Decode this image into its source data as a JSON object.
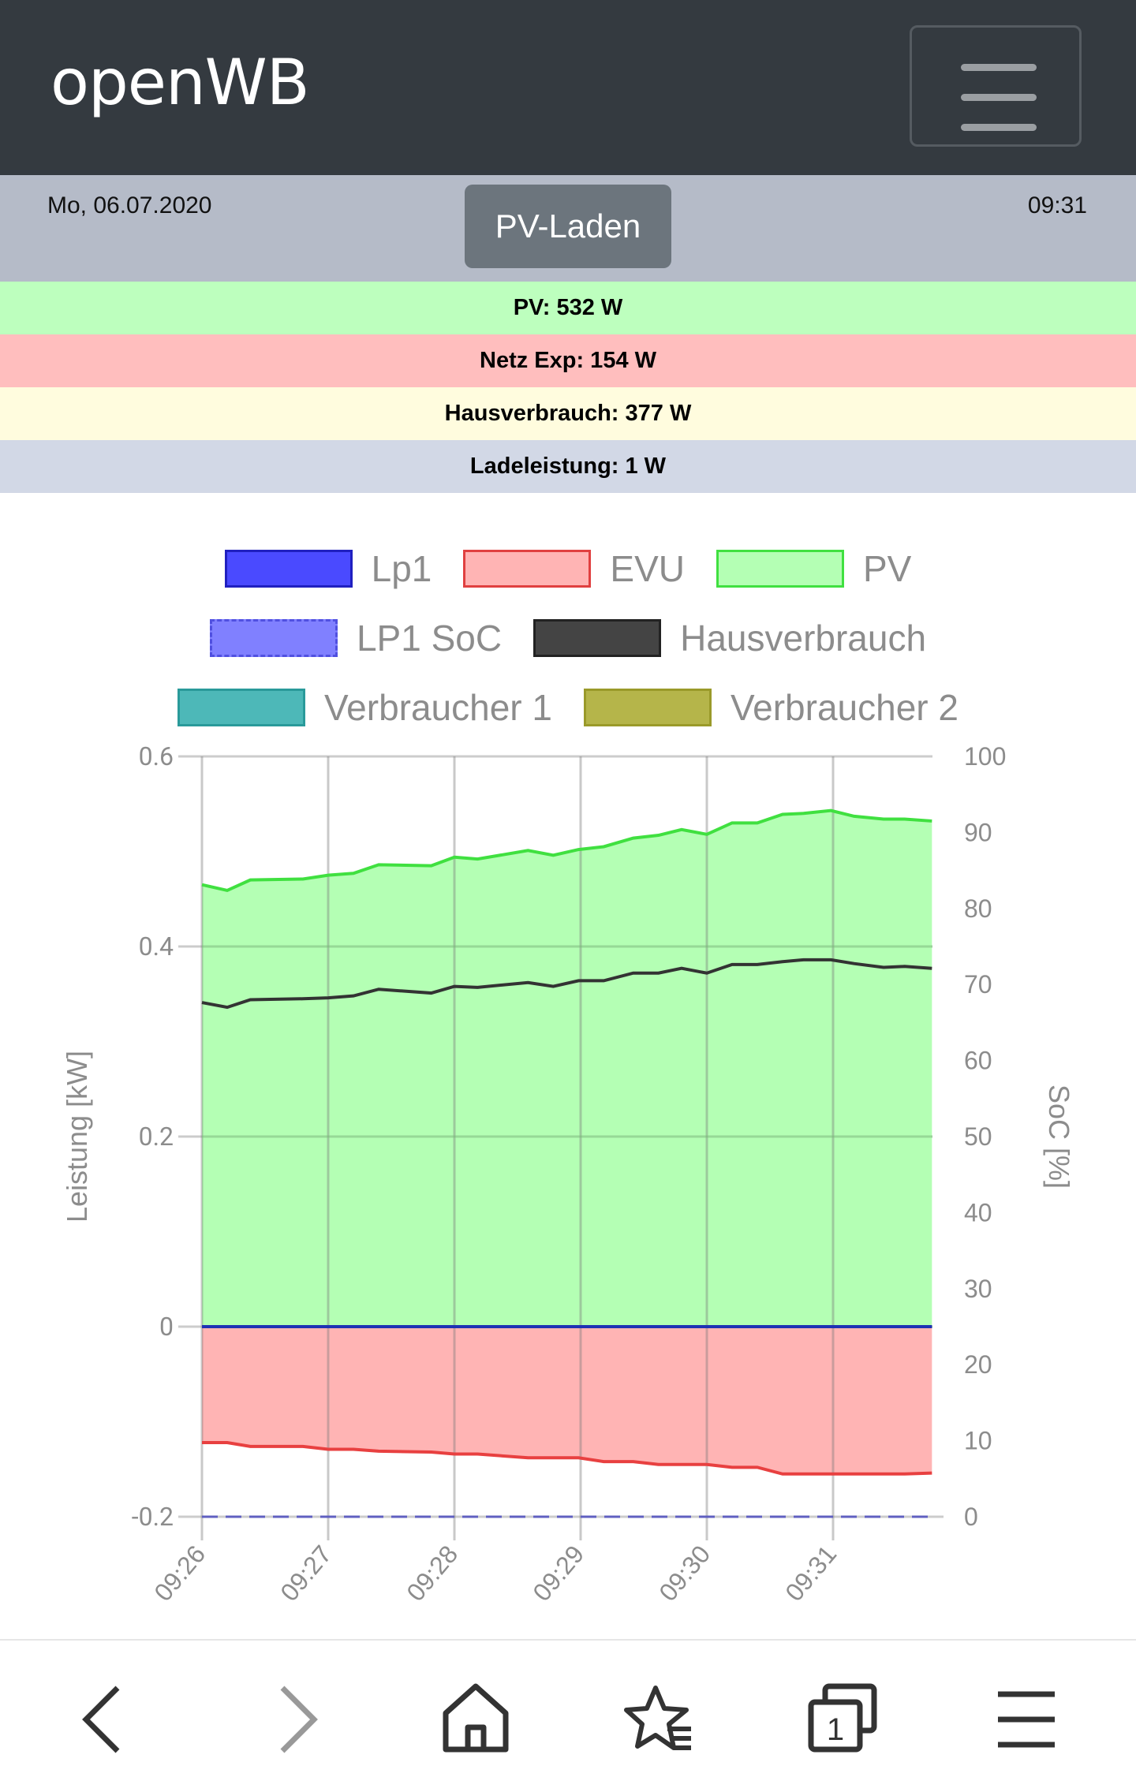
{
  "header": {
    "title": "openWB",
    "menu_icon": "hamburger-icon"
  },
  "infobar": {
    "date": "Mo, 06.07.2020",
    "time": "09:31",
    "mode_button": "PV-Laden"
  },
  "status": [
    {
      "label": "PV: 532 W",
      "color": "#bdffbe"
    },
    {
      "label": "Netz Exp: 154 W",
      "color": "#ffbebe"
    },
    {
      "label": "Hausverbrauch: 377 W",
      "color": "#fffcde"
    },
    {
      "label": "Ladeleistung: 1 W",
      "color": "#d2d8e6"
    }
  ],
  "chart_data": {
    "type": "area",
    "legend": [
      {
        "name": "Lp1",
        "fill": "#4a4aff",
        "border": "#2020c0"
      },
      {
        "name": "EVU",
        "fill": "#ffb4b4",
        "border": "#e04040"
      },
      {
        "name": "PV",
        "fill": "#b4ffb4",
        "border": "#40e040"
      },
      {
        "name": "LP1 SoC",
        "fill": "#8080ff",
        "border": "#5050e0",
        "dashed": true
      },
      {
        "name": "Hausverbrauch",
        "fill": "#444444",
        "border": "#222222"
      },
      {
        "name": "Verbraucher 1",
        "fill": "#4db8b8",
        "border": "#2a9a9a"
      },
      {
        "name": "Verbraucher 2",
        "fill": "#b5b54a",
        "border": "#9a9a2a"
      }
    ],
    "legend_placement": "top",
    "ylabel": "Leistung [kW]",
    "y2label": "SoC [%]",
    "ylim": [
      -0.2,
      0.6
    ],
    "yticks": [
      "0.6",
      "0.4",
      "0.2",
      "0",
      "-0.2"
    ],
    "y2lim": [
      0,
      100
    ],
    "y2ticks": [
      "100",
      "90",
      "80",
      "70",
      "60",
      "50",
      "40",
      "30",
      "20",
      "10",
      "0"
    ],
    "xticks": [
      "09:26",
      "09:27",
      "09:28",
      "09:29",
      "09:30",
      "09:31"
    ],
    "grid": true,
    "x": [
      "09:26:00",
      "09:26:12",
      "09:26:23",
      "09:26:48",
      "09:27:00",
      "09:27:12",
      "09:27:24",
      "09:27:49",
      "09:28:00",
      "09:28:11",
      "09:28:35",
      "09:28:47",
      "09:28:59",
      "09:29:11",
      "09:29:25",
      "09:29:37",
      "09:29:48",
      "09:30:00",
      "09:30:12",
      "09:30:24",
      "09:30:36",
      "09:30:46",
      "09:30:59",
      "09:31:10",
      "09:31:24",
      "09:31:34",
      "09:31:47"
    ],
    "series": [
      {
        "name": "PV",
        "axis": "left",
        "values": [
          0.465,
          0.459,
          0.47,
          0.471,
          0.475,
          0.477,
          0.486,
          0.485,
          0.494,
          0.492,
          0.501,
          0.496,
          0.502,
          0.505,
          0.514,
          0.517,
          0.523,
          0.518,
          0.53,
          0.53,
          0.539,
          0.54,
          0.543,
          0.537,
          0.534,
          0.534,
          0.532
        ]
      },
      {
        "name": "Hausverbrauch",
        "axis": "left",
        "values": [
          0.341,
          0.336,
          0.344,
          0.345,
          0.346,
          0.348,
          0.355,
          0.351,
          0.358,
          0.357,
          0.362,
          0.358,
          0.364,
          0.364,
          0.372,
          0.372,
          0.377,
          0.372,
          0.381,
          0.381,
          0.384,
          0.386,
          0.386,
          0.382,
          0.378,
          0.379,
          0.377
        ]
      },
      {
        "name": "EVU",
        "axis": "left",
        "values": [
          -0.122,
          -0.122,
          -0.126,
          -0.126,
          -0.129,
          -0.129,
          -0.131,
          -0.132,
          -0.134,
          -0.134,
          -0.138,
          -0.138,
          -0.138,
          -0.142,
          -0.142,
          -0.145,
          -0.145,
          -0.145,
          -0.148,
          -0.148,
          -0.155,
          -0.155,
          -0.155,
          -0.155,
          -0.155,
          -0.155,
          -0.154
        ]
      },
      {
        "name": "Lp1",
        "axis": "left",
        "values": [
          0,
          0,
          0,
          0,
          0,
          0,
          0,
          0,
          0,
          0,
          0,
          0,
          0,
          0,
          0,
          0,
          0,
          0,
          0,
          0,
          0,
          0,
          0,
          0,
          0,
          0,
          0
        ]
      },
      {
        "name": "LP1 SoC",
        "axis": "right",
        "values": [
          0,
          0,
          0,
          0,
          0,
          0,
          0,
          0,
          0,
          0,
          0,
          0,
          0,
          0,
          0,
          0,
          0,
          0,
          0,
          0,
          0,
          0,
          0,
          0,
          0,
          0,
          0
        ]
      }
    ]
  },
  "nav": {
    "icons": [
      "back-icon",
      "forward-icon",
      "home-icon",
      "bookmarks-icon",
      "tabs-icon",
      "menu-icon"
    ],
    "tab_count": "1"
  }
}
